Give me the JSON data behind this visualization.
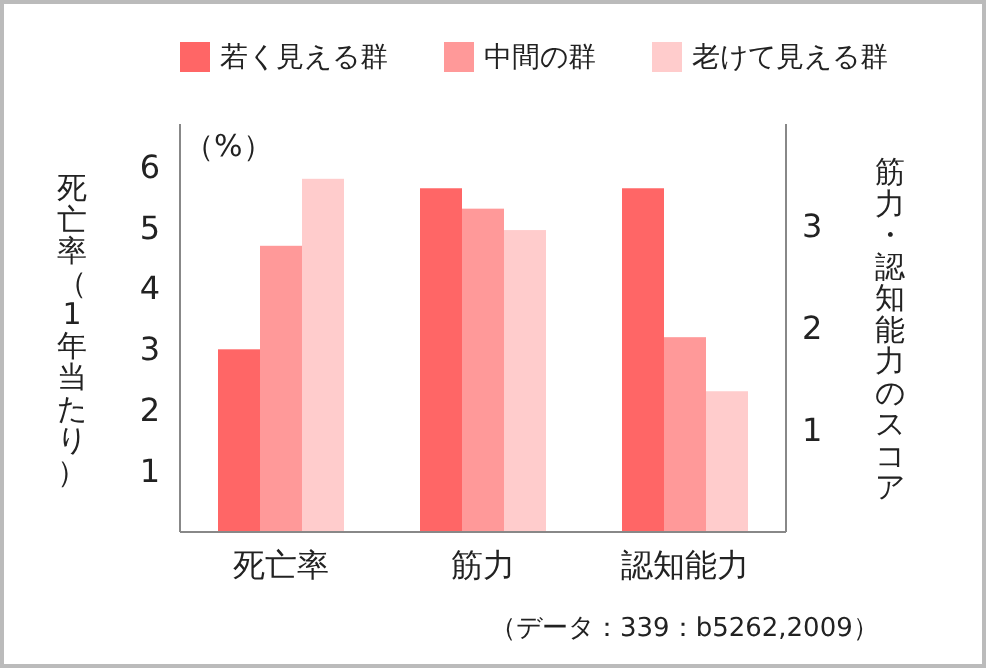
{
  "chart_data": {
    "type": "bar",
    "categories": [
      "死亡率",
      "筋力",
      "認知能力"
    ],
    "series": [
      {
        "name": "若く見える群",
        "color": "#ff6666",
        "values": [
          3.0,
          null,
          null
        ],
        "axis": "y"
      },
      {
        "name": "中間の群",
        "color": "#ff9999",
        "values": [
          4.7,
          null,
          null
        ],
        "axis": "y"
      },
      {
        "name": "老けて見える群",
        "color": "#ffcccc",
        "values": [
          5.8,
          null,
          null
        ],
        "axis": "y"
      },
      {
        "color": "#ff6666",
        "values": [
          null,
          3.37,
          3.37
        ],
        "axis": "y2"
      },
      {
        "color": "#ff9999",
        "values": [
          null,
          3.17,
          1.91
        ],
        "axis": "y2"
      },
      {
        "color": "#ffcccc",
        "values": [
          null,
          2.96,
          1.38
        ],
        "axis": "y2"
      }
    ],
    "ylabel": "死亡率（1年当たり）",
    "y2label": "筋力・認知能力のスコア",
    "ylim": [
      0,
      6.7
    ],
    "yticks": [
      1,
      2,
      3,
      4,
      5,
      6
    ],
    "y2lim": [
      0,
      4.0
    ],
    "y2ticks": [
      1,
      2,
      3
    ],
    "annotations": [
      "（%）",
      "（データ：339：b5262,2009）"
    ],
    "legend": "top",
    "grid": false
  }
}
